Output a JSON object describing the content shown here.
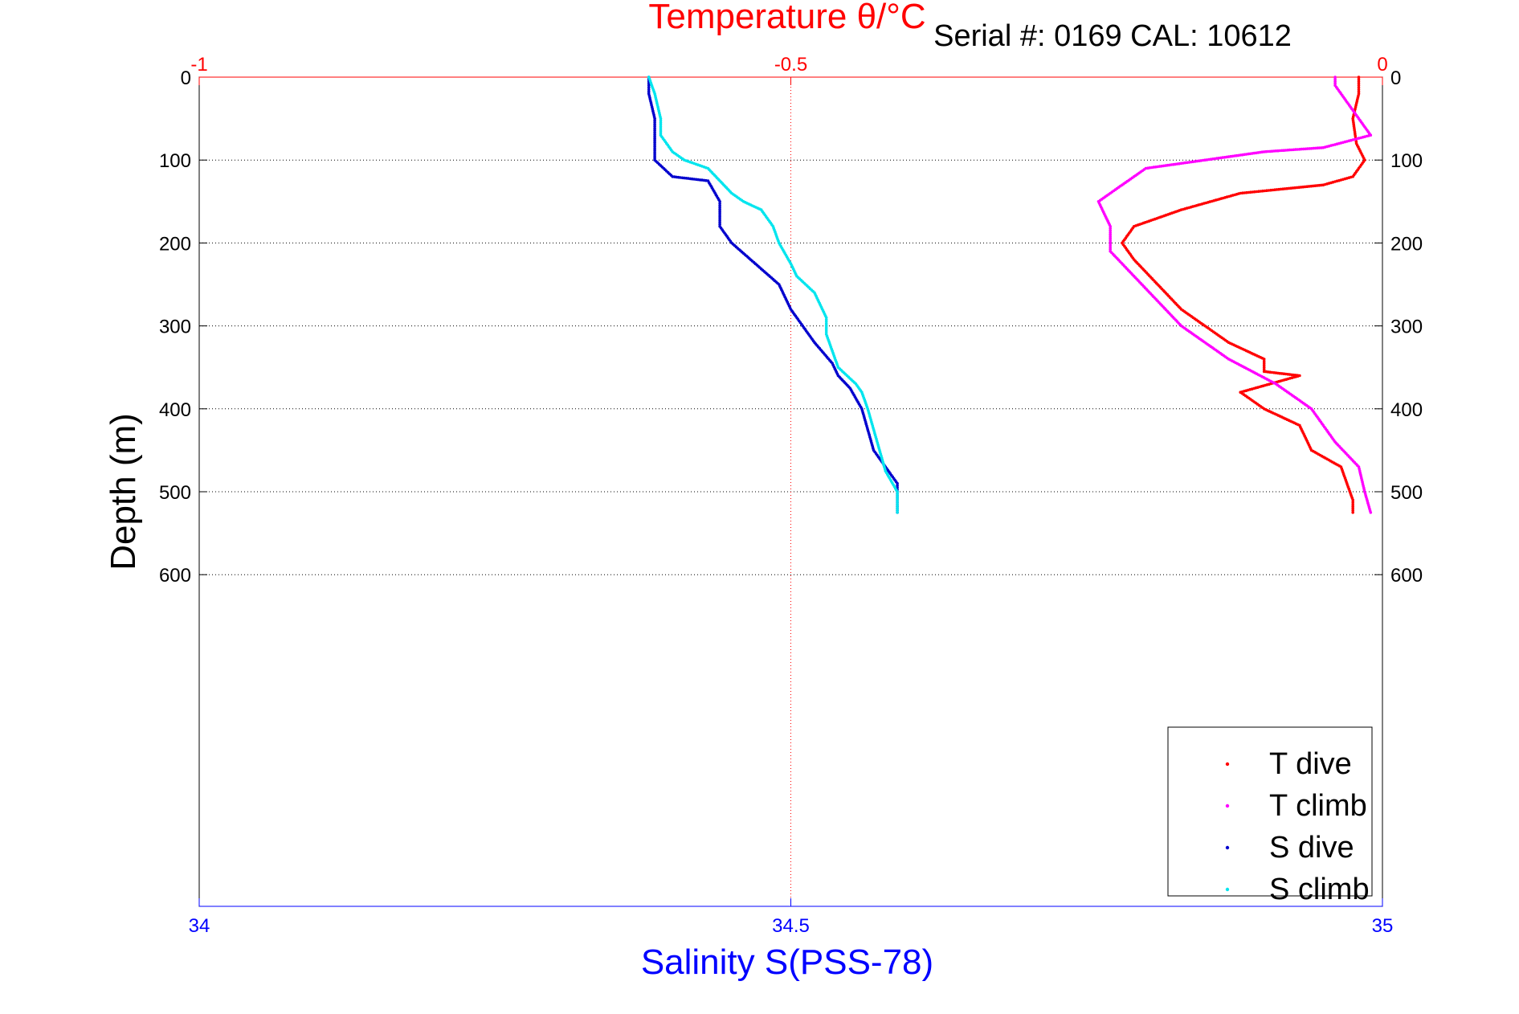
{
  "chart_data": {
    "type": "scatter",
    "title": "Temperature θ/°C",
    "subtitle": "Serial #: 0169 CAL: 10612",
    "ylabel": "Depth (m)",
    "xlabel_bottom": "Salinity S(PSS-78)",
    "xlabel_top": "Temperature θ/°C",
    "ylim": [
      0,
      1000
    ],
    "y_reversed": true,
    "y_ticks": [
      0,
      100,
      200,
      300,
      400,
      500,
      600
    ],
    "y_tick_labels": [
      "0",
      "100",
      "200",
      "300",
      "400",
      "500",
      "600"
    ],
    "x_bottom": {
      "lim": [
        34,
        35
      ],
      "ticks": [
        34,
        34.5,
        35
      ],
      "tick_labels": [
        "34",
        "34.5",
        "35"
      ]
    },
    "x_top": {
      "lim": [
        -1,
        0
      ],
      "ticks": [
        -1,
        -0.5,
        0
      ],
      "tick_labels": [
        "-1",
        "-0.5",
        "0"
      ]
    },
    "grid": true,
    "legend_position": "bottom-right",
    "colors": {
      "temperature_axis": "#ff0000",
      "salinity_axis": "#0000ff",
      "T dive": "#ff0000",
      "T climb": "#ff00ff",
      "S dive": "#0000cd",
      "S climb": "#00e5ee"
    },
    "series": [
      {
        "name": "T dive",
        "axis": "top",
        "points": [
          [
            -0.02,
            0
          ],
          [
            -0.02,
            20
          ],
          [
            -0.025,
            50
          ],
          [
            -0.022,
            80
          ],
          [
            -0.015,
            100
          ],
          [
            -0.025,
            120
          ],
          [
            -0.05,
            130
          ],
          [
            -0.12,
            140
          ],
          [
            -0.17,
            160
          ],
          [
            -0.21,
            180
          ],
          [
            -0.22,
            200
          ],
          [
            -0.21,
            220
          ],
          [
            -0.19,
            250
          ],
          [
            -0.17,
            280
          ],
          [
            -0.15,
            300
          ],
          [
            -0.13,
            320
          ],
          [
            -0.1,
            340
          ],
          [
            -0.1,
            355
          ],
          [
            -0.07,
            360
          ],
          [
            -0.12,
            380
          ],
          [
            -0.1,
            400
          ],
          [
            -0.07,
            420
          ],
          [
            -0.06,
            450
          ],
          [
            -0.035,
            470
          ],
          [
            -0.03,
            490
          ],
          [
            -0.025,
            510
          ],
          [
            -0.025,
            525
          ]
        ]
      },
      {
        "name": "T climb",
        "axis": "top",
        "points": [
          [
            -0.01,
            525
          ],
          [
            -0.015,
            500
          ],
          [
            -0.02,
            470
          ],
          [
            -0.04,
            440
          ],
          [
            -0.06,
            400
          ],
          [
            -0.09,
            370
          ],
          [
            -0.13,
            340
          ],
          [
            -0.17,
            300
          ],
          [
            -0.19,
            270
          ],
          [
            -0.21,
            240
          ],
          [
            -0.23,
            210
          ],
          [
            -0.23,
            180
          ],
          [
            -0.24,
            150
          ],
          [
            -0.22,
            130
          ],
          [
            -0.2,
            110
          ],
          [
            -0.15,
            100
          ],
          [
            -0.1,
            90
          ],
          [
            -0.05,
            85
          ],
          [
            -0.01,
            70
          ],
          [
            -0.02,
            50
          ],
          [
            -0.03,
            30
          ],
          [
            -0.04,
            10
          ],
          [
            -0.04,
            0
          ]
        ]
      },
      {
        "name": "S dive",
        "axis": "bottom",
        "points": [
          [
            34.38,
            0
          ],
          [
            34.38,
            20
          ],
          [
            34.385,
            50
          ],
          [
            34.385,
            100
          ],
          [
            34.4,
            120
          ],
          [
            34.43,
            125
          ],
          [
            34.44,
            150
          ],
          [
            34.44,
            180
          ],
          [
            34.45,
            200
          ],
          [
            34.47,
            225
          ],
          [
            34.49,
            250
          ],
          [
            34.5,
            280
          ],
          [
            34.51,
            300
          ],
          [
            34.52,
            320
          ],
          [
            34.535,
            345
          ],
          [
            34.54,
            360
          ],
          [
            34.55,
            375
          ],
          [
            34.56,
            400
          ],
          [
            34.565,
            425
          ],
          [
            34.57,
            450
          ],
          [
            34.58,
            470
          ],
          [
            34.59,
            490
          ],
          [
            34.59,
            510
          ],
          [
            34.59,
            525
          ]
        ]
      },
      {
        "name": "S climb",
        "axis": "bottom",
        "points": [
          [
            34.59,
            525
          ],
          [
            34.59,
            500
          ],
          [
            34.58,
            475
          ],
          [
            34.575,
            450
          ],
          [
            34.57,
            425
          ],
          [
            34.565,
            400
          ],
          [
            34.56,
            380
          ],
          [
            34.555,
            370
          ],
          [
            34.54,
            350
          ],
          [
            34.535,
            330
          ],
          [
            34.53,
            310
          ],
          [
            34.53,
            290
          ],
          [
            34.52,
            260
          ],
          [
            34.505,
            240
          ],
          [
            34.5,
            225
          ],
          [
            34.49,
            200
          ],
          [
            34.485,
            180
          ],
          [
            34.475,
            160
          ],
          [
            34.46,
            150
          ],
          [
            34.45,
            140
          ],
          [
            34.44,
            125
          ],
          [
            34.43,
            110
          ],
          [
            34.41,
            100
          ],
          [
            34.4,
            90
          ],
          [
            34.39,
            70
          ],
          [
            34.39,
            50
          ],
          [
            34.385,
            20
          ],
          [
            34.38,
            0
          ]
        ]
      }
    ]
  }
}
